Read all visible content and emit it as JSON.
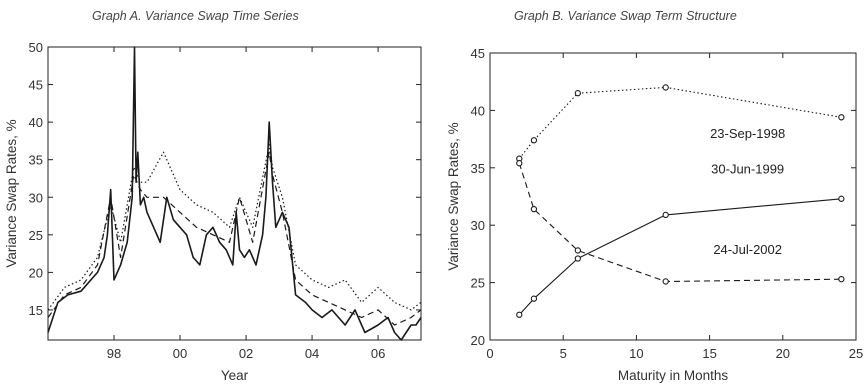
{
  "chart_data": [
    {
      "type": "line",
      "title": "Graph A. Variance Swap Time Series",
      "xlabel": "Year",
      "ylabel": "Variance Swap Rates, %",
      "xlim": [
        1996.0,
        2007.3
      ],
      "ylim": [
        11,
        50
      ],
      "xticks": [
        1998,
        2000,
        2002,
        2004,
        2006
      ],
      "xtick_labels": [
        "98",
        "00",
        "02",
        "04",
        "06"
      ],
      "yticks": [
        15,
        20,
        25,
        30,
        35,
        40,
        45,
        50
      ],
      "grid": false,
      "series": [
        {
          "style": "solid",
          "x": [
            1996.0,
            1996.3,
            1996.6,
            1997.0,
            1997.3,
            1997.5,
            1997.7,
            1997.8,
            1997.9,
            1998.0,
            1998.2,
            1998.4,
            1998.55,
            1998.62,
            1998.67,
            1998.72,
            1998.8,
            1998.9,
            1999.0,
            1999.2,
            1999.4,
            1999.6,
            1999.8,
            2000.0,
            2000.2,
            2000.4,
            2000.6,
            2000.8,
            2001.0,
            2001.2,
            2001.4,
            2001.6,
            2001.7,
            2001.8,
            2001.95,
            2002.1,
            2002.3,
            2002.5,
            2002.6,
            2002.7,
            2002.8,
            2002.9,
            2003.1,
            2003.3,
            2003.5,
            2003.8,
            2004.0,
            2004.3,
            2004.6,
            2005.0,
            2005.3,
            2005.6,
            2006.0,
            2006.3,
            2006.5,
            2006.7,
            2007.0,
            2007.15,
            2007.3
          ],
          "values": [
            12,
            16,
            17,
            17.5,
            19,
            20,
            22,
            25,
            31,
            19,
            21,
            24,
            30,
            50,
            32,
            36,
            29,
            30,
            28,
            26,
            24,
            30,
            27,
            26,
            25,
            22,
            21,
            25,
            26,
            24,
            23,
            21,
            28,
            23,
            22,
            23,
            21,
            25,
            30,
            40,
            32,
            26,
            28,
            26,
            17,
            16,
            15,
            14,
            15,
            13,
            15,
            12,
            13,
            14,
            12,
            11,
            13,
            13,
            14
          ]
        },
        {
          "style": "dashed",
          "x": [
            1996.0,
            1996.5,
            1997.0,
            1997.5,
            1997.9,
            1998.2,
            1998.6,
            1998.8,
            1999.0,
            1999.5,
            2000.0,
            2000.5,
            2001.0,
            2001.5,
            2001.8,
            2002.2,
            2002.7,
            2002.8,
            2003.1,
            2003.5,
            2004.0,
            2004.5,
            2005.0,
            2005.5,
            2006.0,
            2006.5,
            2007.0,
            2007.3
          ],
          "values": [
            14,
            17,
            18,
            21,
            30,
            22,
            33,
            31,
            30,
            30,
            28,
            26,
            25,
            24,
            30,
            24,
            36,
            33,
            28,
            19,
            17,
            16,
            15,
            14,
            15,
            13,
            14,
            15
          ]
        },
        {
          "style": "dotted",
          "x": [
            1996.0,
            1996.5,
            1997.0,
            1997.5,
            1997.9,
            1998.2,
            1998.6,
            1998.8,
            1999.0,
            1999.5,
            2000.0,
            2000.5,
            2001.0,
            2001.5,
            2001.8,
            2002.2,
            2002.7,
            2002.8,
            2003.1,
            2003.5,
            2004.0,
            2004.5,
            2005.0,
            2005.5,
            2006.0,
            2006.5,
            2007.0,
            2007.3
          ],
          "values": [
            15,
            18,
            19,
            22,
            29,
            24,
            34,
            32,
            32,
            36,
            31,
            29,
            28,
            26,
            30,
            26,
            37,
            34,
            30,
            21,
            19,
            18,
            19,
            16,
            18,
            16,
            15,
            16
          ]
        }
      ]
    },
    {
      "type": "line",
      "title": "Graph B. Variance Swap Term Structure",
      "xlabel": "Maturity in Months",
      "ylabel": "Variance Swap Rates, %",
      "xlim": [
        0,
        25
      ],
      "ylim": [
        20,
        45
      ],
      "xticks": [
        0,
        5,
        10,
        15,
        20,
        25
      ],
      "yticks": [
        20,
        25,
        30,
        35,
        40,
        45
      ],
      "grid": false,
      "series": [
        {
          "name": "23-Sep-1998",
          "style": "dotted",
          "x": [
            2,
            3,
            6,
            12,
            24
          ],
          "values": [
            35.8,
            37.4,
            41.5,
            42.0,
            39.4
          ]
        },
        {
          "name": "30-Jun-1999",
          "style": "solid",
          "x": [
            2,
            3,
            6,
            12,
            24
          ],
          "values": [
            22.2,
            23.6,
            27.1,
            30.9,
            32.3
          ]
        },
        {
          "name": "24-Jul-2002",
          "style": "dashed",
          "x": [
            2,
            3,
            6,
            12,
            24
          ],
          "values": [
            35.4,
            31.4,
            27.8,
            25.1,
            25.3
          ]
        }
      ]
    }
  ]
}
